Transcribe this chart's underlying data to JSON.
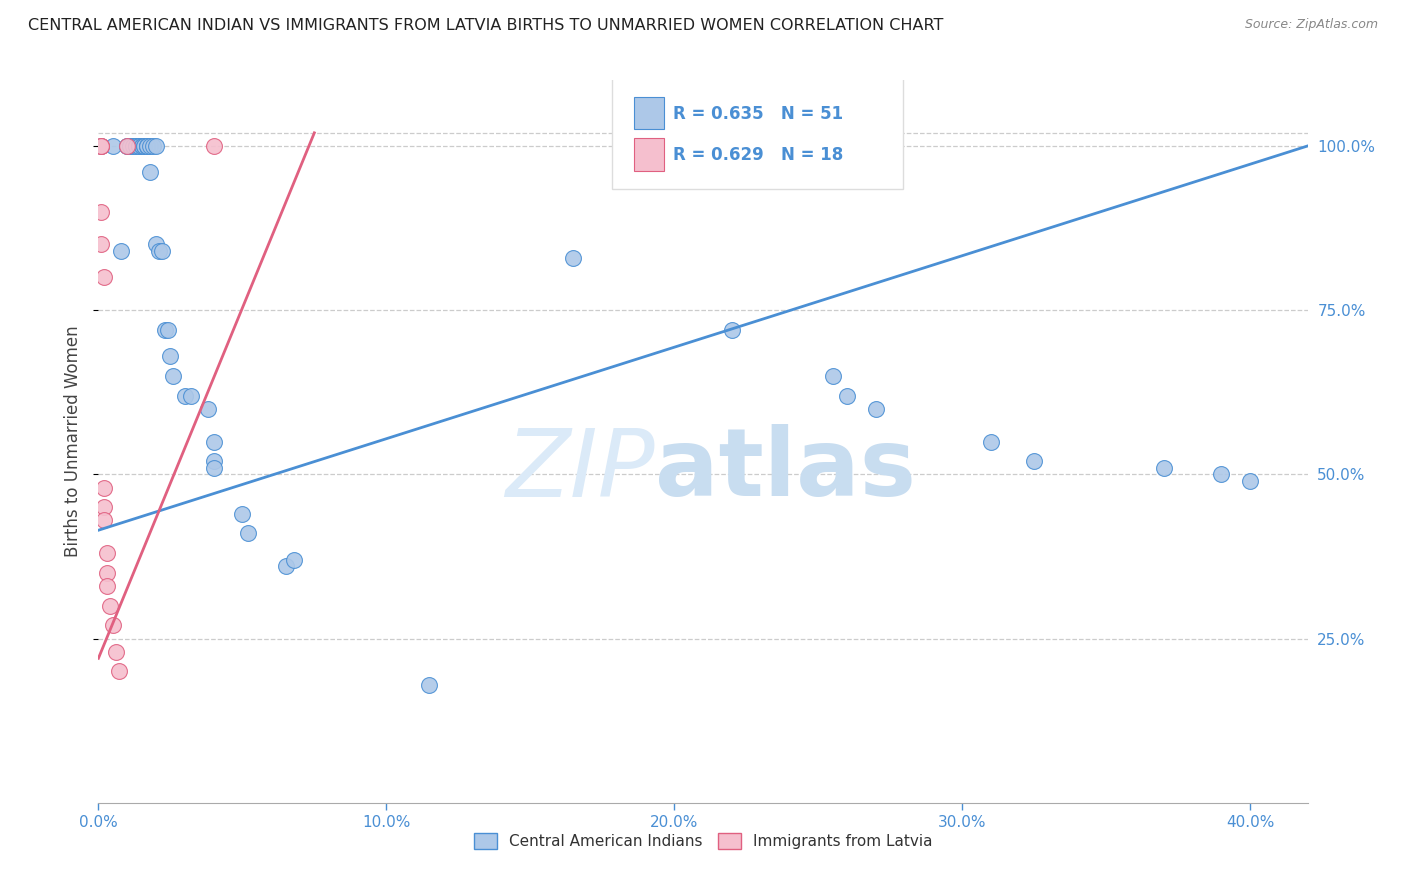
{
  "title": "CENTRAL AMERICAN INDIAN VS IMMIGRANTS FROM LATVIA BIRTHS TO UNMARRIED WOMEN CORRELATION CHART",
  "source": "Source: ZipAtlas.com",
  "ylabel": "Births to Unmarried Women",
  "legend_blue_label": "Central American Indians",
  "legend_pink_label": "Immigrants from Latvia",
  "R_blue": "0.635",
  "N_blue": "51",
  "R_pink": "0.629",
  "N_pink": "18",
  "blue_color": "#adc8e8",
  "pink_color": "#f5bfce",
  "blue_line_color": "#4a8fd4",
  "pink_line_color": "#e06080",
  "watermark_zip": "ZIP",
  "watermark_atlas": "atlas",
  "x_tick_vals": [
    0.0,
    0.1,
    0.2,
    0.3,
    0.4
  ],
  "y_tick_vals": [
    0.25,
    0.5,
    0.75,
    1.0
  ],
  "x_lim": [
    0.0,
    0.42
  ],
  "y_lim": [
    0.0,
    1.1
  ],
  "blue_scatter_x": [
    0.001,
    0.005,
    0.008,
    0.01,
    0.01,
    0.011,
    0.011,
    0.012,
    0.013,
    0.013,
    0.014,
    0.014,
    0.015,
    0.015,
    0.016,
    0.016,
    0.017,
    0.017,
    0.017,
    0.018,
    0.018,
    0.019,
    0.02,
    0.02,
    0.021,
    0.022,
    0.023,
    0.024,
    0.025,
    0.026,
    0.03,
    0.032,
    0.038,
    0.04,
    0.04,
    0.04,
    0.05,
    0.052,
    0.065,
    0.068,
    0.115,
    0.165,
    0.22,
    0.255,
    0.26,
    0.27,
    0.31,
    0.325,
    0.37,
    0.39,
    0.4
  ],
  "blue_scatter_y": [
    1.0,
    1.0,
    0.84,
    1.0,
    1.0,
    1.0,
    1.0,
    1.0,
    1.0,
    1.0,
    1.0,
    1.0,
    1.0,
    1.0,
    1.0,
    1.0,
    1.0,
    1.0,
    1.0,
    0.96,
    1.0,
    1.0,
    0.85,
    1.0,
    0.84,
    0.84,
    0.72,
    0.72,
    0.68,
    0.65,
    0.62,
    0.62,
    0.6,
    0.55,
    0.52,
    0.51,
    0.44,
    0.41,
    0.36,
    0.37,
    0.18,
    0.83,
    0.72,
    0.65,
    0.62,
    0.6,
    0.55,
    0.52,
    0.51,
    0.5,
    0.49
  ],
  "pink_scatter_x": [
    0.001,
    0.001,
    0.001,
    0.001,
    0.001,
    0.002,
    0.002,
    0.002,
    0.002,
    0.003,
    0.003,
    0.003,
    0.004,
    0.005,
    0.006,
    0.007,
    0.01,
    0.04
  ],
  "pink_scatter_y": [
    1.0,
    1.0,
    1.0,
    0.9,
    0.85,
    0.8,
    0.48,
    0.45,
    0.43,
    0.38,
    0.35,
    0.33,
    0.3,
    0.27,
    0.23,
    0.2,
    1.0,
    1.0
  ],
  "blue_line_x": [
    0.0,
    0.42
  ],
  "blue_line_y": [
    0.415,
    1.0
  ],
  "pink_line_x": [
    0.0,
    0.075
  ],
  "pink_line_y": [
    0.22,
    1.02
  ],
  "figsize": [
    14.06,
    8.92
  ],
  "dpi": 100
}
